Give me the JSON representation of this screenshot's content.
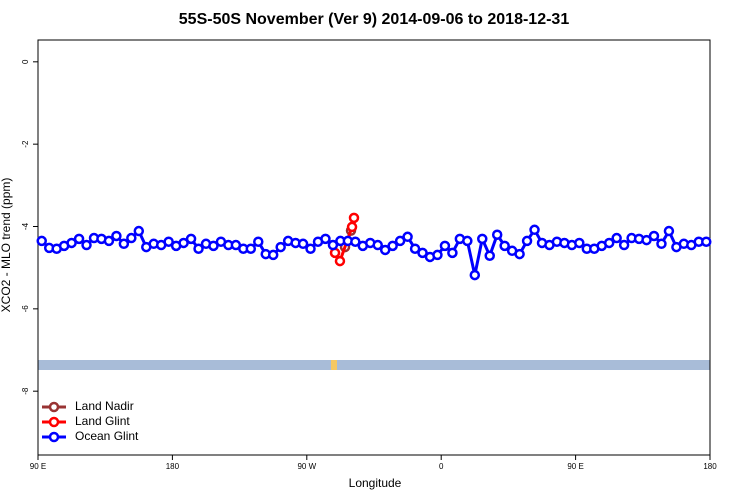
{
  "chart_data": {
    "type": "line",
    "title": "55S-50S November (Ver 9)   2014-09-06 to 2018-12-31",
    "xlabel": "Longitude",
    "ylabel": "XCO2 - MLO trend (ppm)",
    "xlim": [
      90,
      540
    ],
    "xticks": [
      {
        "value": 90,
        "label": "90 E"
      },
      {
        "value": 180,
        "label": "180"
      },
      {
        "value": 270,
        "label": "90 W"
      },
      {
        "value": 360,
        "label": "0"
      },
      {
        "value": 450,
        "label": "90 E"
      },
      {
        "value": 540,
        "label": "180"
      }
    ],
    "ylim": [
      -9.55,
      0.53
    ],
    "yticks": [
      0,
      -2,
      -4,
      -6,
      -8
    ],
    "legend": "bottom-left",
    "series": [
      {
        "name": "Land Nadir",
        "color": "#993333",
        "x": [
          295.6,
          299.6
        ],
        "values": [
          -4.5,
          -4.1
        ]
      },
      {
        "name": "Land Glint",
        "color": "#ff0000",
        "x": [
          288.9,
          292.2,
          300.3,
          301.6
        ],
        "values": [
          -4.64,
          -4.84,
          -4.01,
          -3.79
        ]
      },
      {
        "name": "Ocean Glint",
        "color": "#0000ff",
        "x": [
          92.5,
          97.5,
          102.5,
          107.5,
          112.5,
          117.5,
          122.5,
          127.5,
          132.5,
          137.5,
          142.5,
          147.5,
          152.5,
          157.5,
          162.5,
          167.5,
          172.5,
          177.5,
          182.5,
          187.5,
          192.5,
          197.5,
          202.5,
          207.5,
          212.5,
          217.5,
          222.5,
          227.5,
          232.5,
          237.5,
          242.5,
          247.5,
          252.5,
          257.5,
          262.5,
          267.5,
          272.5,
          277.5,
          282.5,
          287.5,
          292.5,
          297.5,
          302.5,
          307.5,
          312.5,
          317.5,
          322.5,
          327.5,
          332.5,
          337.5,
          342.5,
          347.5,
          352.5,
          357.5,
          362.5,
          367.5,
          372.5,
          377.5,
          382.5,
          387.5,
          392.5,
          397.5,
          402.5,
          407.5,
          412.5,
          417.5,
          422.5,
          427.5,
          432.5,
          437.5,
          442.5,
          447.5,
          452.5,
          457.5,
          462.5,
          467.5,
          472.5,
          477.5,
          482.5,
          487.5,
          492.5,
          497.5,
          502.5,
          507.5,
          512.5,
          517.5,
          522.5,
          527.5,
          532.5,
          537.5
        ],
        "values": [
          -4.35,
          -4.52,
          -4.54,
          -4.47,
          -4.4,
          -4.3,
          -4.45,
          -4.28,
          -4.3,
          -4.35,
          -4.23,
          -4.42,
          -4.28,
          -4.11,
          -4.5,
          -4.42,
          -4.45,
          -4.37,
          -4.47,
          -4.4,
          -4.3,
          -4.54,
          -4.42,
          -4.47,
          -4.37,
          -4.45,
          -4.45,
          -4.54,
          -4.54,
          -4.37,
          -4.67,
          -4.69,
          -4.5,
          -4.35,
          -4.4,
          -4.42,
          -4.54,
          -4.37,
          -4.3,
          -4.45,
          -4.35,
          -4.35,
          -4.37,
          -4.47,
          -4.4,
          -4.45,
          -4.57,
          -4.47,
          -4.35,
          -4.25,
          -4.54,
          -4.64,
          -4.74,
          -4.69,
          -4.47,
          -4.64,
          -4.3,
          -4.35,
          -5.18,
          -4.3,
          -4.71,
          -4.2,
          -4.47,
          -4.59,
          -4.67,
          -4.35,
          -4.08,
          -4.4,
          -4.45,
          -4.37,
          -4.4,
          -4.45,
          -4.4,
          -4.54,
          -4.54,
          -4.47,
          -4.4,
          -4.28,
          -4.45,
          -4.28,
          -4.3,
          -4.33,
          -4.23,
          -4.42,
          -4.11,
          -4.5,
          -4.42,
          -4.45,
          -4.37,
          -4.37
        ]
      }
    ]
  }
}
